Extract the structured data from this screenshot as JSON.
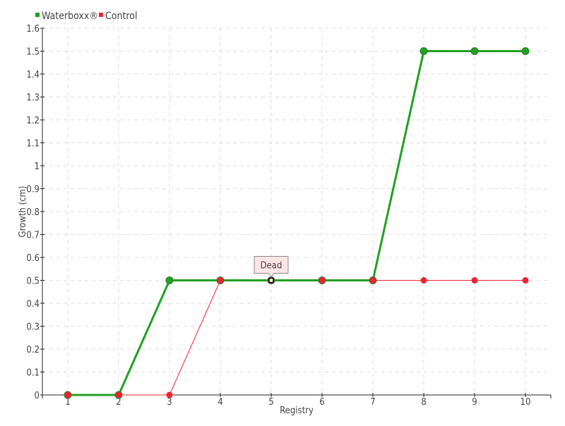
{
  "chart_data": {
    "type": "line",
    "categories": [
      1,
      2,
      3,
      4,
      5,
      6,
      7,
      8,
      9,
      10
    ],
    "xlabel": "Registry",
    "ylabel": "Growth (cm)",
    "ylim": [
      0,
      1.6
    ],
    "yticks": [
      "0",
      "0.1",
      "0.2",
      "0.3",
      "0.4",
      "0.5",
      "0.6",
      "0.7",
      "0.8",
      "0.9",
      "1",
      "1.1",
      "1.2",
      "1.3",
      "1.4",
      "1.5",
      "1.6"
    ],
    "grid": true,
    "legend_position": "top-left",
    "series": [
      {
        "name": "Waterboxx®",
        "color": "#22a022",
        "values": [
          0,
          0,
          0.5,
          0.5,
          0.5,
          0.5,
          0.5,
          1.5,
          1.5,
          1.5
        ]
      },
      {
        "name": "Control",
        "color": "#ee2233",
        "values": [
          0,
          0,
          0,
          0.5,
          0.5,
          0.5,
          0.5,
          0.5,
          0.5,
          0.5
        ]
      }
    ],
    "annotations": [
      {
        "text": "Dead",
        "x": 5,
        "y": 0.5
      }
    ]
  }
}
